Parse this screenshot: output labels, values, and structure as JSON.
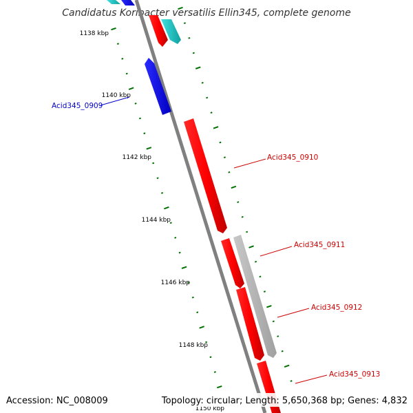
{
  "title": "Candidatus Koribacter versatilis Ellin345, complete genome",
  "footer": {
    "accession": "Accession: NC_008009",
    "topology": "Topology: circular; Length: 5,650,368 bp; Genes: 4,832"
  },
  "kbp_markers": [
    "1138 kbp",
    "1140 kbp",
    "1142 kbp",
    "1144 kbp",
    "1146 kbp",
    "1148 kbp",
    "1150 kbp"
  ],
  "gene_labels": [
    {
      "id": "Acid345_0909",
      "text": "Acid345_0909",
      "color": "#0000cc"
    },
    {
      "id": "Acid345_0910",
      "text": "Acid345_0910",
      "color": "#cc0000"
    },
    {
      "id": "Acid345_0911",
      "text": "Acid345_0911",
      "color": "#cc0000"
    },
    {
      "id": "Acid345_0912",
      "text": "Acid345_0912",
      "color": "#cc0000"
    },
    {
      "id": "Acid345_0913",
      "text": "Acid345_0913",
      "color": "#cc0000"
    }
  ],
  "colors": {
    "backbone": "#808080",
    "tick": "#007000",
    "gene_red": "#ff0000",
    "gene_blue": "#0000ff",
    "gene_cyan": "#20c0c0",
    "gene_gray": "#b0b0b0"
  }
}
